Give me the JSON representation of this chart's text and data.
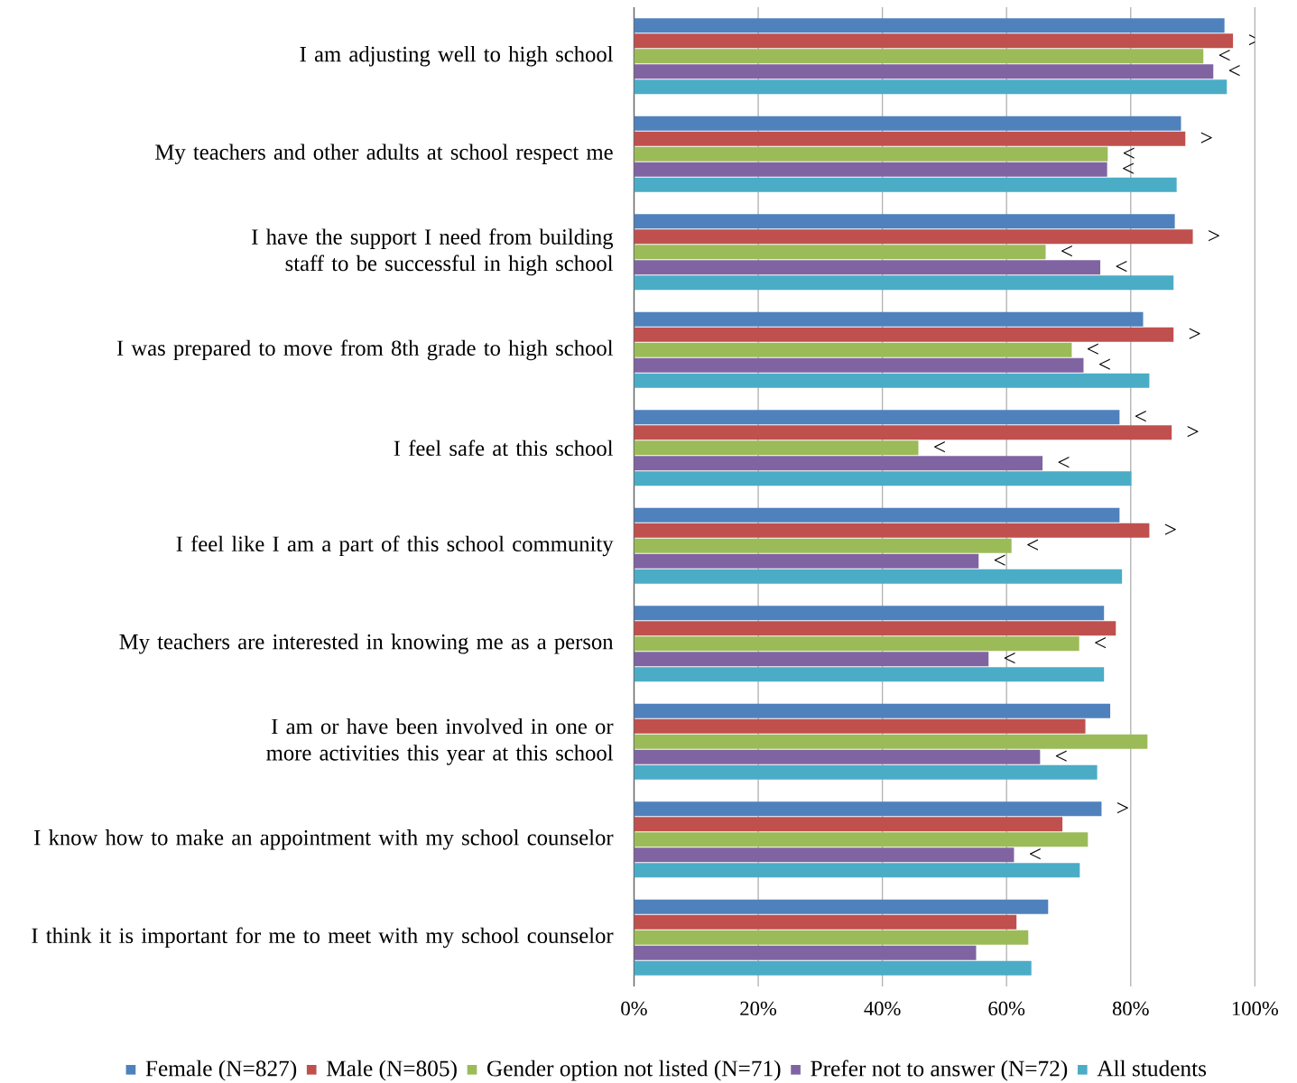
{
  "chart_data": {
    "type": "bar",
    "orientation": "horizontal",
    "categories": [
      "I am adjusting well to high school",
      "My teachers and other adults at school respect me",
      "I have the support I need from building staff to be successful in high school",
      "I was prepared to move from 8th grade to high school",
      "I feel safe at this school",
      "I feel like I am a part of this school community",
      "My teachers are interested in knowing me as a person",
      "I am or have been involved in one or more activities this year at this school",
      "I know how to make an appointment with my school counselor",
      "I think it is important for me to meet with my school counselor"
    ],
    "series": [
      {
        "name": "Female (N=827)",
        "color": "#4f81bd",
        "values": [
          95.1,
          88.1,
          87.1,
          82.0,
          78.2,
          78.2,
          75.7,
          76.7,
          75.3,
          66.7
        ],
        "value_labels": [
          null,
          null,
          null,
          null,
          "<",
          null,
          null,
          null,
          ">",
          null
        ]
      },
      {
        "name": "Male (N=805)",
        "color": "#c0504d",
        "values": [
          96.5,
          88.8,
          90.0,
          86.9,
          86.6,
          83.0,
          77.6,
          72.7,
          69.0,
          61.6
        ],
        "value_labels": [
          ">",
          ">",
          ">",
          ">",
          ">",
          ">",
          null,
          null,
          null,
          null
        ]
      },
      {
        "name": "Gender option not listed (N=71)",
        "color": "#9bbb59",
        "values": [
          91.7,
          76.3,
          66.3,
          70.5,
          45.8,
          60.8,
          71.7,
          82.7,
          73.1,
          63.5
        ],
        "value_labels": [
          "<",
          "<",
          "<",
          "<",
          "<",
          "<",
          "<",
          null,
          null,
          null
        ]
      },
      {
        "name": "Prefer not to answer (N=72)",
        "color": "#8064a2",
        "values": [
          93.3,
          76.2,
          75.1,
          72.4,
          65.8,
          55.5,
          57.1,
          65.4,
          61.2,
          55.1
        ],
        "value_labels": [
          "<",
          "<",
          "<",
          "<",
          "<",
          "<",
          "<",
          "<",
          "<",
          null
        ]
      },
      {
        "name": "All students",
        "color": "#4bacc6",
        "values": [
          95.5,
          87.4,
          86.9,
          83.0,
          80.1,
          78.6,
          75.7,
          74.6,
          71.8,
          64.0
        ]
      }
    ],
    "xlim": [
      0,
      100
    ],
    "xticks": [
      {
        "value": 0,
        "label": "0%"
      },
      {
        "value": 20,
        "label": "20%"
      },
      {
        "value": 40,
        "label": "40%"
      },
      {
        "value": 60,
        "label": "60%"
      },
      {
        "value": 80,
        "label": "80%"
      },
      {
        "value": 100,
        "label": "100%"
      }
    ],
    "grid": "x",
    "legend": "bottom"
  }
}
